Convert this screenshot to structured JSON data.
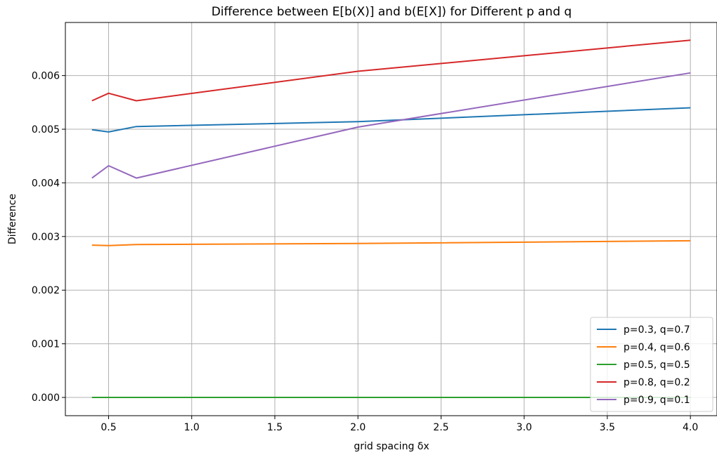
{
  "chart_data": {
    "type": "line",
    "title": "Difference between E[b(X)] and b(E[X]) for Different p and q",
    "xlabel": "grid spacing δx",
    "ylabel": "Difference",
    "xlim": [
      0.24,
      4.16
    ],
    "ylim": [
      -0.00034,
      0.00699
    ],
    "xticks": [
      0.5,
      1.0,
      1.5,
      2.0,
      2.5,
      3.0,
      3.5,
      4.0
    ],
    "xtick_labels": [
      "0.5",
      "1.0",
      "1.5",
      "2.0",
      "2.5",
      "3.0",
      "3.5",
      "4.0"
    ],
    "yticks": [
      0.0,
      0.001,
      0.002,
      0.003,
      0.004,
      0.005,
      0.006
    ],
    "ytick_labels": [
      "0.000",
      "0.001",
      "0.002",
      "0.003",
      "0.004",
      "0.005",
      "0.006"
    ],
    "grid": true,
    "legend_position": "lower right",
    "x": [
      0.4,
      0.5,
      0.667,
      2.0,
      4.0
    ],
    "series": [
      {
        "name": "p=0.3, q=0.7",
        "color": "#1f77b4",
        "values": [
          0.00499,
          0.00495,
          0.00505,
          0.00514,
          0.0054
        ]
      },
      {
        "name": "p=0.4, q=0.6",
        "color": "#ff7f0e",
        "values": [
          0.00284,
          0.00283,
          0.00285,
          0.00287,
          0.00292
        ]
      },
      {
        "name": "p=0.5, q=0.5",
        "color": "#2ca02c",
        "values": [
          0.0,
          0.0,
          0.0,
          0.0,
          0.0
        ]
      },
      {
        "name": "p=0.8, q=0.2",
        "color": "#d62728",
        "values": [
          0.00553,
          0.00567,
          0.00553,
          0.00608,
          0.00666
        ]
      },
      {
        "name": "p=0.9, q=0.1",
        "color": "#9467bd",
        "values": [
          0.00409,
          0.00432,
          0.00409,
          0.00504,
          0.00605
        ]
      }
    ]
  }
}
